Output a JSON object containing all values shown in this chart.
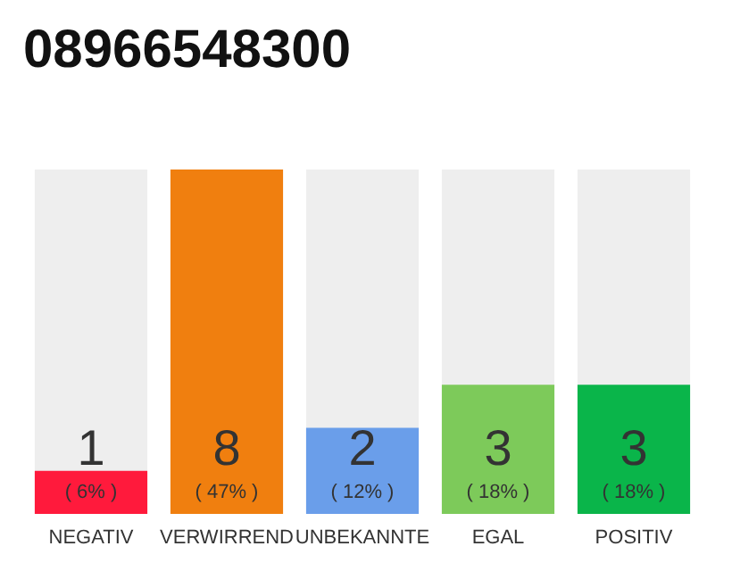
{
  "chart_data": {
    "type": "bar",
    "title": "08966548300",
    "categories": [
      "NEGATIV",
      "VERWIRREND",
      "UNBEKANNTE",
      "EGAL",
      "POSITIV"
    ],
    "values": [
      1,
      8,
      2,
      3,
      3
    ],
    "colors": [
      "#ff1a3c",
      "#f07f0f",
      "#6a9eea",
      "#7dca5a",
      "#0ab54a"
    ],
    "value_labels": [
      "1\n( 6% )",
      "8\n( 47% )",
      "2\n( 12% )",
      "3\n( 18% )",
      "3\n( 18% )"
    ]
  }
}
